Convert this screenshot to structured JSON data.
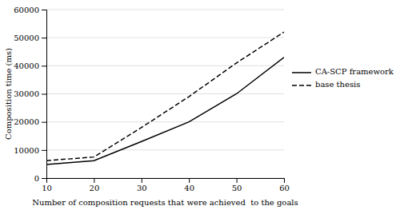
{
  "chart_data": {
    "type": "line",
    "x": [
      10,
      20,
      30,
      40,
      50,
      60
    ],
    "series": [
      {
        "name": "CA-SCP framework",
        "color": "#000000",
        "line_style": "solid",
        "values": [
          4800,
          6200,
          13000,
          20000,
          30000,
          43000
        ]
      },
      {
        "name": "base thesis",
        "color": "#000000",
        "line_style": "dashed",
        "values": [
          6200,
          7500,
          18000,
          29000,
          41000,
          52000
        ]
      }
    ],
    "xlabel": "Number of composition requests that were achieved  to the goals",
    "ylabel": "Composition time (ms)",
    "xlim": [
      10,
      60
    ],
    "ylim": [
      0,
      60000
    ],
    "xticks": [
      10,
      20,
      30,
      40,
      50,
      60
    ],
    "yticks": [
      0,
      10000,
      20000,
      30000,
      40000,
      50000,
      60000
    ],
    "grid": true,
    "legend": "right"
  }
}
